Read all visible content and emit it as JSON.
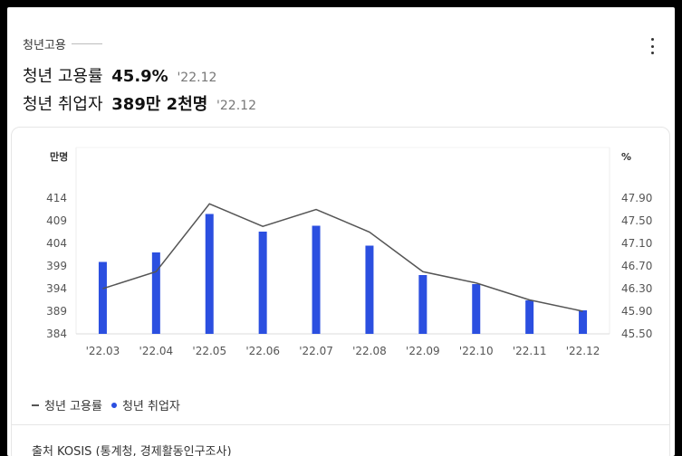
{
  "header": {
    "section_label": "청년고용",
    "stat1": {
      "label": "청년 고용률",
      "value": "45.9%",
      "date": "'22.12"
    },
    "stat2": {
      "label": "청년 취업자",
      "value": "389만 2천명",
      "date": "'22.12"
    }
  },
  "chart_data": {
    "type": "bar+line",
    "categories": [
      "'22.03",
      "'22.04",
      "'22.05",
      "'22.06",
      "'22.07",
      "'22.08",
      "'22.09",
      "'22.10",
      "'22.11",
      "'22.12"
    ],
    "y_left": {
      "label": "만명",
      "ticks": [
        "414",
        "409",
        "404",
        "399",
        "394",
        "389",
        "384"
      ],
      "range": [
        384,
        414
      ]
    },
    "y_right": {
      "label": "%",
      "ticks": [
        "47.90",
        "47.50",
        "47.10",
        "46.70",
        "46.30",
        "45.90",
        "45.50"
      ],
      "range": [
        45.5,
        47.9
      ]
    },
    "series": [
      {
        "name": "청년 취업자",
        "kind": "bar",
        "axis": "left",
        "color": "#2b4fe0",
        "values": [
          399.9,
          402.0,
          410.5,
          406.6,
          407.9,
          403.5,
          397.0,
          395.0,
          391.4,
          389.2
        ]
      },
      {
        "name": "청년 고용률",
        "kind": "line",
        "axis": "right",
        "color": "#555555",
        "values": [
          46.3,
          46.6,
          47.8,
          47.4,
          47.7,
          47.3,
          46.6,
          46.4,
          46.1,
          45.9
        ]
      }
    ],
    "grid": true
  },
  "legend": [
    {
      "label": "청년 고용률",
      "marker": "dash"
    },
    {
      "label": "청년 취업자",
      "marker": "dot"
    }
  ],
  "source": "출처 KOSIS (통계청, 경제활동인구조사)"
}
